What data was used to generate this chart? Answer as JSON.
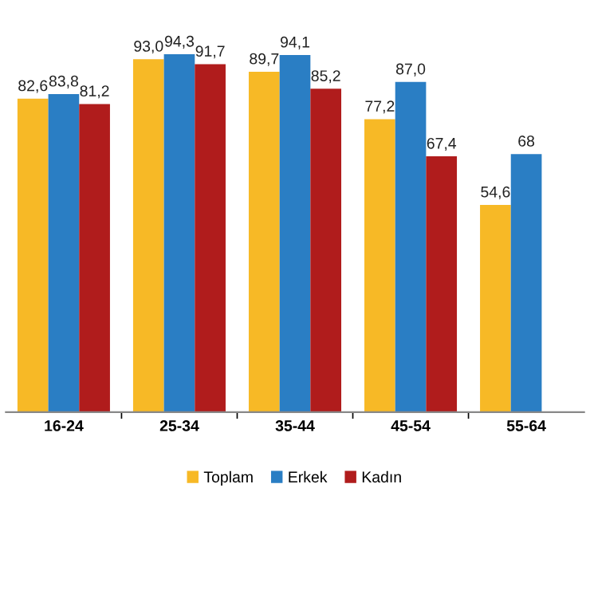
{
  "chart_data": {
    "type": "bar",
    "categories": [
      "16-24",
      "25-34",
      "35-44",
      "45-54",
      "55-64"
    ],
    "series": [
      {
        "name": "Toplam",
        "color": "#f7b926",
        "values": [
          82.6,
          93.0,
          89.7,
          77.2,
          54.6
        ],
        "value_labels": [
          "82,6",
          "93,0",
          "89,7",
          "77,2",
          "54,6"
        ]
      },
      {
        "name": "Erkek",
        "color": "#2a7ec4",
        "values": [
          83.8,
          94.3,
          94.1,
          87.0,
          68
        ],
        "value_labels": [
          "83,8",
          "94,3",
          "94,1",
          "87,0",
          "68"
        ]
      },
      {
        "name": "Kadın",
        "color": "#b01c1c",
        "values": [
          81.2,
          91.7,
          85.2,
          67.4,
          null
        ],
        "value_labels": [
          "81,2",
          "91,7",
          "85,2",
          "67,4",
          null
        ]
      }
    ],
    "legend": "bottom",
    "grid": false
  }
}
